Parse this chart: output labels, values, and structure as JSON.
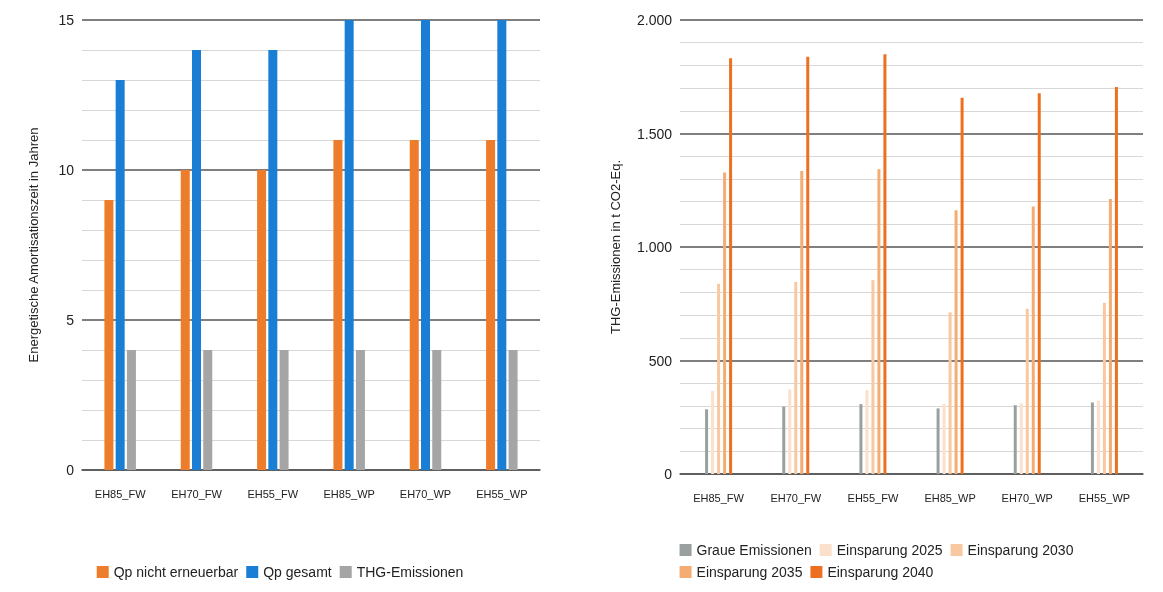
{
  "chart_data": [
    {
      "type": "bar",
      "ylabel": "Energetische Amortisationszeit in Jahren",
      "categories": [
        "EH85_FW",
        "EH70_FW",
        "EH55_FW",
        "EH85_WP",
        "EH70_WP",
        "EH55_WP"
      ],
      "series": [
        {
          "name": "Qp nicht erneuerbar",
          "color": "#ee7d2b",
          "values": [
            9,
            10,
            10,
            11,
            11,
            11
          ]
        },
        {
          "name": "Qp gesamt",
          "color": "#1a7fd4",
          "values": [
            13,
            14,
            14,
            15,
            15,
            15
          ]
        },
        {
          "name": "THG-Emissionen",
          "color": "#a5a5a5",
          "values": [
            4,
            4,
            4,
            4,
            4,
            4
          ]
        }
      ],
      "ylim": [
        0,
        15
      ],
      "yticks": [
        0,
        5,
        10,
        15
      ],
      "grid": "y",
      "legend": "bottom"
    },
    {
      "type": "bar",
      "ylabel": "THG-Emissionen in t CO2-Eq.",
      "categories": [
        "EH85_FW",
        "EH70_FW",
        "EH55_FW",
        "EH85_WP",
        "EH70_WP",
        "EH55_WP"
      ],
      "series": [
        {
          "name": "Graue Emissionen",
          "color": "#9aa0a0",
          "values": [
            285,
            297,
            308,
            289,
            303,
            315
          ]
        },
        {
          "name": "Einsparung 2025",
          "color": "#fbe0cc",
          "values": [
            366,
            372,
            369,
            308,
            311,
            323
          ]
        },
        {
          "name": "Einsparung 2030",
          "color": "#f8c8a0",
          "values": [
            838,
            846,
            854,
            712,
            728,
            754
          ]
        },
        {
          "name": "Einsparung 2035",
          "color": "#f4ac72",
          "values": [
            1328,
            1335,
            1343,
            1162,
            1178,
            1212
          ]
        },
        {
          "name": "Einsparung 2040",
          "color": "#ed7020",
          "values": [
            1831,
            1838,
            1849,
            1657,
            1677,
            1705
          ]
        }
      ],
      "ylim": [
        0,
        2000
      ],
      "yticks": [
        0,
        500,
        {
          "value": 1000,
          "label": "1.000"
        },
        {
          "value": 1500,
          "label": "1.500"
        },
        {
          "value": 2000,
          "label": "2.000"
        }
      ],
      "grid": "y",
      "legend": "bottom"
    }
  ]
}
